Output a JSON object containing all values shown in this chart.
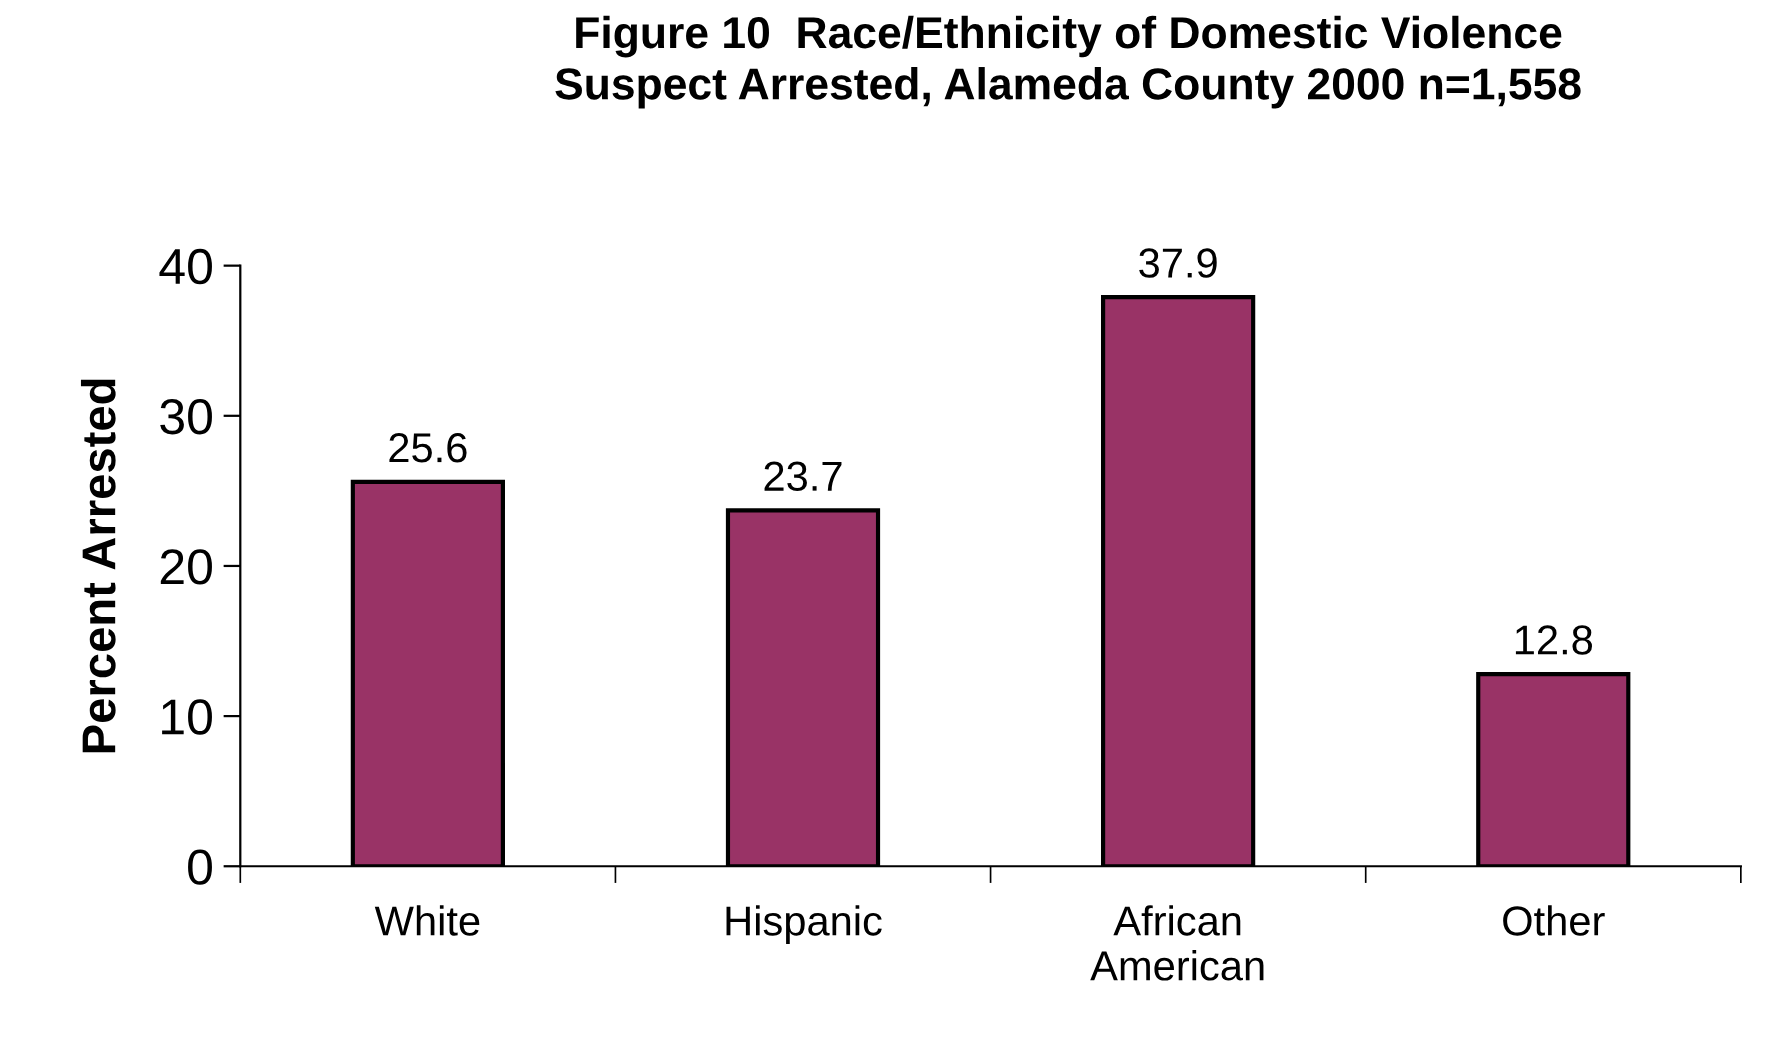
{
  "chart_data": {
    "type": "bar",
    "title": "Figure 10  Race/Ethnicity of Domestic Violence\nSuspect Arrested, Alameda County 2000 n=1,558",
    "ylabel": "Percent Arrested",
    "categories": [
      "White",
      "Hispanic",
      "African\nAmerican",
      "Other"
    ],
    "values": [
      25.6,
      23.7,
      37.9,
      12.8
    ],
    "color": "#993366",
    "ylim": [
      0,
      40
    ],
    "yticks": [
      0,
      10,
      20,
      30,
      40
    ],
    "data_labels": true,
    "grid": false,
    "legend": false
  }
}
